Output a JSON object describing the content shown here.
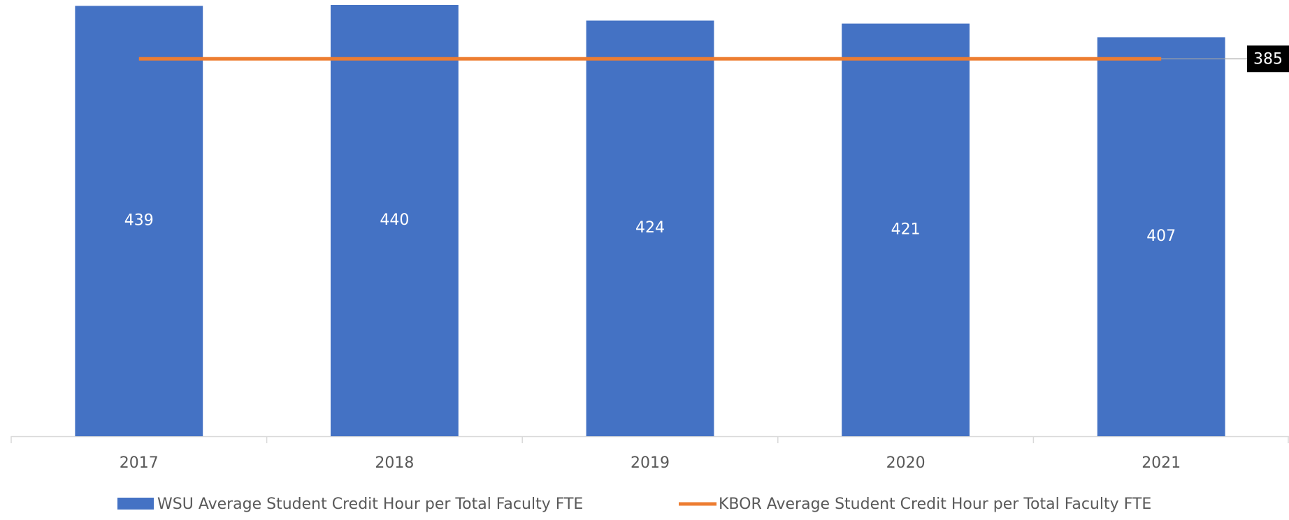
{
  "chart_data": {
    "type": "bar",
    "categories": [
      "2017",
      "2018",
      "2019",
      "2020",
      "2021"
    ],
    "series": [
      {
        "name": "WSU Average Student Credit Hour per Total Faculty FTE",
        "type": "bar",
        "color": "#4472c4",
        "values": [
          439,
          440,
          424,
          421,
          407
        ]
      },
      {
        "name": "KBOR Average Student Credit Hour per Total Faculty FTE",
        "type": "line",
        "color": "#ed7d31",
        "values": [
          385,
          385,
          385,
          385,
          385
        ]
      }
    ],
    "ylim": [
      0,
      445
    ],
    "legend": "bottom"
  }
}
